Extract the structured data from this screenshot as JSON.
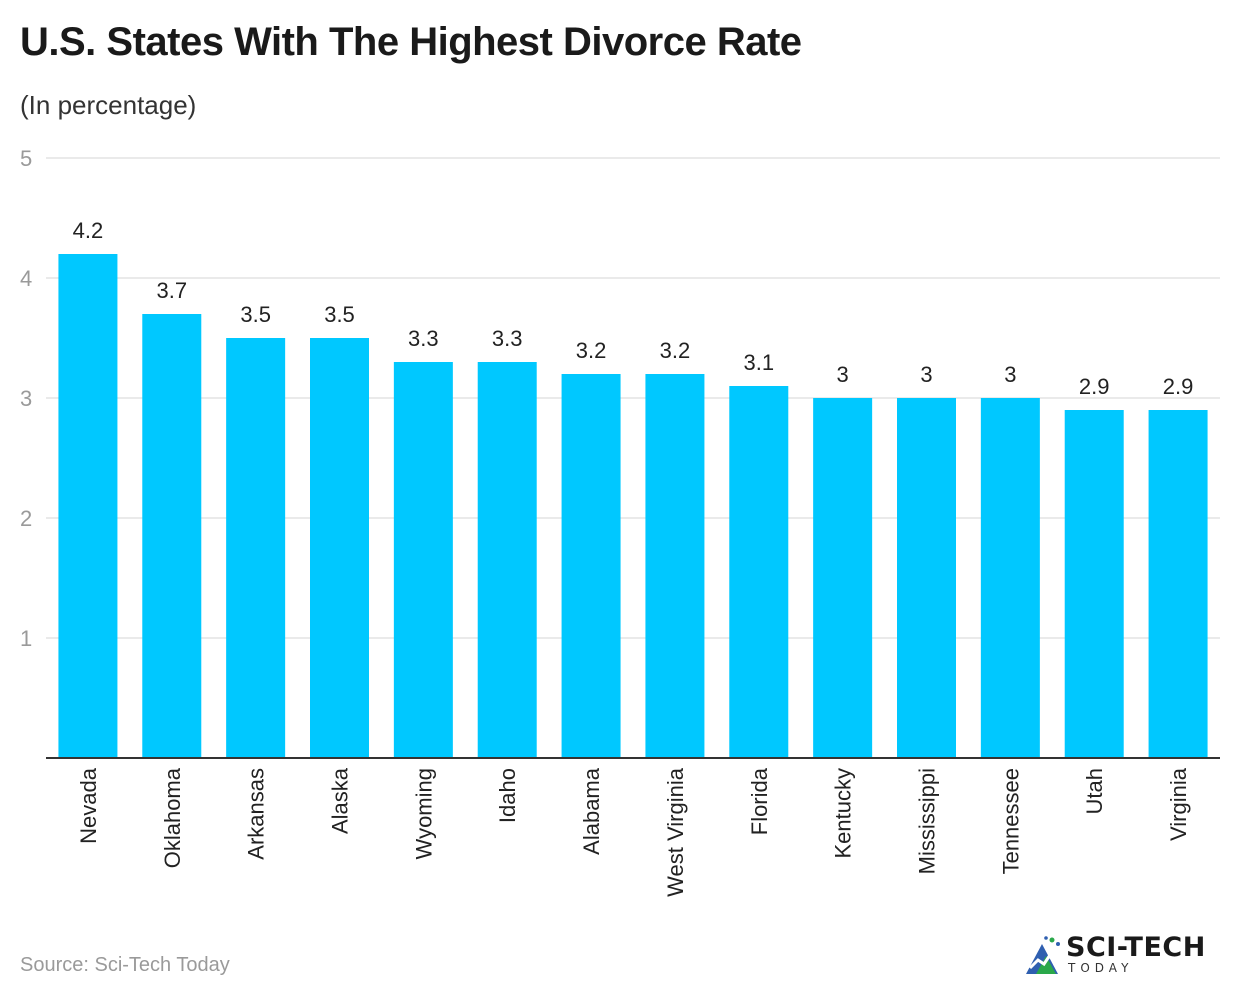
{
  "header": {
    "title": "U.S. States With The Highest Divorce Rate",
    "subtitle": "(In percentage)"
  },
  "footer": {
    "source": "Source: Sci-Tech Today",
    "brand_name": "SCI-TECH",
    "brand_sub": "TODAY"
  },
  "colors": {
    "bar": "#00c8ff",
    "grid": "#e3e3e3",
    "tick_label": "#9a9a9a",
    "axis": "#333333"
  },
  "chart_data": {
    "type": "bar",
    "title": "U.S. States With The Highest Divorce Rate",
    "subtitle": "(In percentage)",
    "categories": [
      "Nevada",
      "Oklahoma",
      "Arkansas",
      "Alaska",
      "Wyoming",
      "Idaho",
      "Alabama",
      "West Virginia",
      "Florida",
      "Kentucky",
      "Mississippi",
      "Tennessee",
      "Utah",
      "Virginia"
    ],
    "values": [
      4.2,
      3.7,
      3.5,
      3.5,
      3.3,
      3.3,
      3.2,
      3.2,
      3.1,
      3,
      3,
      3,
      2.9,
      2.9
    ],
    "ylim": [
      0,
      5
    ],
    "yticks": [
      1,
      2,
      3,
      4,
      5
    ],
    "grid": true,
    "data_labels": true,
    "xlabel": "",
    "ylabel": ""
  }
}
